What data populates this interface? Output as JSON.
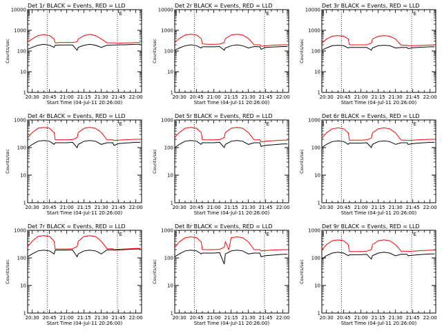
{
  "figure": {
    "colors": {
      "events": "#000000",
      "lld": "#ff0000",
      "background": "#ffffff",
      "axes": "#000000"
    },
    "shared": {
      "xlabel": "Start Time (04-Jul-11 20:26:00)",
      "ylabel": "Counts/sec",
      "x_tick_labels": [
        "20:30",
        "20:45",
        "21:00",
        "21:15",
        "21:30",
        "21:45",
        "22:00"
      ],
      "x_tick_minutes": [
        30,
        45,
        60,
        75,
        90,
        105,
        120
      ],
      "x_range_minutes": [
        26,
        125
      ],
      "dotted_lines_minutes": [
        43,
        104
      ],
      "flag_label": "E",
      "flag_minute": 105
    },
    "x_axis_note": "x values are minutes after 20:00 on 04-Jul-11"
  },
  "chart_data": [
    {
      "type": "line",
      "title": "Det 1r BLACK = Events, RED = LLD",
      "ylim": [
        1,
        10000
      ],
      "yscale": "log",
      "y_tick_labels": [
        "10000",
        "1000",
        "100",
        "10",
        "1"
      ],
      "y_tick_values": [
        10000,
        1000,
        100,
        10,
        1
      ],
      "x": [
        26,
        30,
        35,
        40,
        45,
        49,
        50,
        55,
        60,
        65,
        69,
        70,
        75,
        80,
        85,
        90,
        95,
        100,
        101,
        105,
        110,
        115,
        120,
        124
      ],
      "series": [
        {
          "name": "Events",
          "values": [
            120,
            150,
            190,
            210,
            190,
            150,
            190,
            195,
            195,
            195,
            110,
            150,
            190,
            210,
            190,
            150,
            190,
            195,
            195,
            200,
            200,
            205,
            210,
            210
          ]
        },
        {
          "name": "LLD",
          "values": [
            280,
            380,
            560,
            620,
            560,
            380,
            250,
            260,
            260,
            260,
            280,
            380,
            560,
            640,
            560,
            380,
            250,
            250,
            250,
            240,
            245,
            250,
            255,
            255
          ]
        }
      ]
    },
    {
      "type": "line",
      "title": "Det 2r BLACK = Events, RED = LLD",
      "ylim": [
        1,
        10000
      ],
      "yscale": "log",
      "y_tick_labels": [
        "10000",
        "1000",
        "100",
        "10",
        "1"
      ],
      "y_tick_values": [
        10000,
        1000,
        100,
        10,
        1
      ],
      "x": [
        26,
        30,
        35,
        40,
        45,
        49,
        50,
        55,
        60,
        65,
        69,
        70,
        75,
        80,
        85,
        90,
        95,
        100,
        101,
        105,
        110,
        115,
        120,
        124
      ],
      "series": [
        {
          "name": "Events",
          "values": [
            110,
            140,
            180,
            200,
            180,
            140,
            160,
            160,
            160,
            165,
            110,
            140,
            180,
            200,
            180,
            140,
            165,
            160,
            120,
            150,
            155,
            160,
            165,
            165
          ]
        },
        {
          "name": "LLD",
          "values": [
            260,
            400,
            600,
            650,
            600,
            400,
            220,
            210,
            210,
            215,
            260,
            400,
            600,
            650,
            600,
            400,
            200,
            200,
            170,
            180,
            190,
            195,
            200,
            200
          ]
        }
      ]
    },
    {
      "type": "line",
      "title": "Det 3r BLACK = Events, RED = LLD",
      "ylim": [
        1,
        10000
      ],
      "yscale": "log",
      "y_tick_labels": [
        "10000",
        "1000",
        "100",
        "10",
        "1"
      ],
      "y_tick_values": [
        10000,
        1000,
        100,
        10,
        1
      ],
      "x": [
        26,
        30,
        35,
        40,
        45,
        49,
        50,
        55,
        60,
        65,
        69,
        70,
        75,
        80,
        85,
        90,
        95,
        100,
        101,
        105,
        110,
        115,
        120,
        124
      ],
      "series": [
        {
          "name": "Events",
          "values": [
            110,
            140,
            180,
            190,
            180,
            140,
            150,
            150,
            150,
            150,
            110,
            140,
            180,
            190,
            180,
            140,
            150,
            150,
            130,
            145,
            150,
            155,
            160,
            160
          ]
        },
        {
          "name": "LLD",
          "values": [
            240,
            380,
            520,
            560,
            520,
            380,
            200,
            200,
            200,
            200,
            240,
            380,
            520,
            560,
            520,
            380,
            190,
            190,
            180,
            180,
            185,
            190,
            195,
            195
          ]
        }
      ]
    },
    {
      "type": "line",
      "title": "Det 4r BLACK = Events, RED = LLD",
      "ylim": [
        1,
        1000
      ],
      "yscale": "log",
      "y_tick_labels": [
        "1000",
        "100",
        "10",
        "1"
      ],
      "y_tick_values": [
        1000,
        100,
        10,
        1
      ],
      "x": [
        26,
        30,
        35,
        40,
        45,
        49,
        50,
        55,
        60,
        65,
        69,
        70,
        75,
        80,
        85,
        90,
        95,
        100,
        101,
        105,
        110,
        115,
        120,
        124
      ],
      "series": [
        {
          "name": "Events",
          "values": [
            100,
            130,
            170,
            180,
            170,
            130,
            150,
            150,
            150,
            155,
            100,
            130,
            170,
            180,
            170,
            130,
            150,
            150,
            120,
            140,
            145,
            150,
            155,
            155
          ]
        },
        {
          "name": "LLD",
          "values": [
            230,
            350,
            500,
            540,
            500,
            350,
            190,
            190,
            190,
            195,
            230,
            350,
            500,
            540,
            500,
            350,
            190,
            190,
            180,
            185,
            190,
            195,
            200,
            200
          ]
        }
      ]
    },
    {
      "type": "line",
      "title": "Det 5r BLACK = Events, RED = LLD",
      "ylim": [
        1,
        1000
      ],
      "yscale": "log",
      "y_tick_labels": [
        "1000",
        "100",
        "10",
        "1"
      ],
      "y_tick_values": [
        1000,
        100,
        10,
        1
      ],
      "x": [
        26,
        30,
        35,
        40,
        45,
        49,
        50,
        55,
        60,
        65,
        69,
        70,
        75,
        80,
        85,
        90,
        95,
        100,
        101,
        105,
        110,
        115,
        120,
        124
      ],
      "series": [
        {
          "name": "Events",
          "values": [
            100,
            130,
            170,
            180,
            170,
            130,
            150,
            150,
            150,
            155,
            100,
            130,
            170,
            180,
            170,
            130,
            150,
            150,
            110,
            120,
            125,
            130,
            135,
            135
          ]
        },
        {
          "name": "LLD",
          "values": [
            230,
            350,
            500,
            540,
            500,
            350,
            190,
            190,
            190,
            195,
            230,
            350,
            500,
            540,
            500,
            350,
            190,
            190,
            160,
            170,
            175,
            180,
            185,
            185
          ]
        }
      ]
    },
    {
      "type": "line",
      "title": "Det 6r BLACK = Events, RED = LLD",
      "ylim": [
        1,
        1000
      ],
      "yscale": "log",
      "y_tick_labels": [
        "1000",
        "100",
        "10",
        "1"
      ],
      "y_tick_values": [
        1000,
        100,
        10,
        1
      ],
      "x": [
        26,
        30,
        35,
        40,
        45,
        49,
        50,
        55,
        60,
        65,
        69,
        70,
        75,
        80,
        85,
        90,
        95,
        100,
        101,
        105,
        110,
        115,
        120,
        124
      ],
      "series": [
        {
          "name": "Events",
          "values": [
            100,
            130,
            165,
            175,
            165,
            130,
            145,
            145,
            145,
            150,
            100,
            130,
            165,
            175,
            165,
            130,
            150,
            150,
            130,
            140,
            145,
            150,
            155,
            155
          ]
        },
        {
          "name": "LLD",
          "values": [
            220,
            340,
            480,
            520,
            480,
            340,
            185,
            185,
            185,
            190,
            220,
            340,
            480,
            520,
            480,
            340,
            185,
            185,
            180,
            185,
            190,
            195,
            200,
            200
          ]
        }
      ]
    },
    {
      "type": "line",
      "title": "Det 7r BLACK = Events, RED = LLD",
      "ylim": [
        1,
        1000
      ],
      "yscale": "log",
      "y_tick_labels": [
        "1000",
        "100",
        "10",
        "1"
      ],
      "y_tick_values": [
        1000,
        100,
        10,
        1
      ],
      "x": [
        26,
        30,
        35,
        40,
        45,
        49,
        50,
        55,
        60,
        65,
        69,
        70,
        75,
        80,
        85,
        90,
        95,
        100,
        101,
        105,
        110,
        115,
        120,
        124
      ],
      "series": [
        {
          "name": "Events",
          "values": [
            110,
            140,
            180,
            190,
            180,
            140,
            190,
            190,
            190,
            195,
            110,
            140,
            180,
            190,
            180,
            140,
            195,
            195,
            190,
            195,
            200,
            205,
            210,
            210
          ]
        },
        {
          "name": "LLD",
          "values": [
            260,
            400,
            600,
            640,
            600,
            400,
            210,
            210,
            210,
            215,
            260,
            400,
            600,
            640,
            600,
            400,
            215,
            215,
            200,
            205,
            210,
            215,
            220,
            220
          ]
        }
      ]
    },
    {
      "type": "line",
      "title": "Det 8r BLACK = Events, RED = LLD",
      "ylim": [
        1,
        1000
      ],
      "yscale": "log",
      "y_tick_labels": [
        "1000",
        "100",
        "10",
        "1"
      ],
      "y_tick_values": [
        1000,
        100,
        10,
        1
      ],
      "x": [
        26,
        30,
        35,
        40,
        45,
        49,
        50,
        55,
        60,
        65,
        69,
        70,
        73,
        75,
        80,
        85,
        90,
        95,
        100,
        101,
        105,
        110,
        115,
        120,
        124
      ],
      "series": [
        {
          "name": "Events",
          "values": [
            110,
            140,
            180,
            190,
            180,
            140,
            150,
            150,
            150,
            155,
            60,
            140,
            160,
            180,
            190,
            180,
            140,
            150,
            150,
            110,
            120,
            125,
            130,
            135,
            135
          ]
        },
        {
          "name": "LLD",
          "values": [
            240,
            380,
            540,
            580,
            540,
            380,
            200,
            200,
            200,
            205,
            240,
            380,
            200,
            540,
            580,
            540,
            380,
            200,
            200,
            180,
            185,
            190,
            195,
            200,
            200
          ]
        }
      ]
    },
    {
      "type": "line",
      "title": "Det 9r BLACK = Events, RED = LLD",
      "ylim": [
        1,
        1000
      ],
      "yscale": "log",
      "y_tick_labels": [
        "1000",
        "100",
        "10",
        "1"
      ],
      "y_tick_values": [
        1000,
        100,
        10,
        1
      ],
      "x": [
        26,
        30,
        35,
        40,
        45,
        49,
        50,
        55,
        60,
        65,
        69,
        70,
        75,
        80,
        85,
        90,
        95,
        100,
        101,
        105,
        110,
        115,
        120,
        124
      ],
      "series": [
        {
          "name": "Events",
          "values": [
            90,
            120,
            150,
            160,
            150,
            120,
            130,
            130,
            130,
            135,
            90,
            120,
            150,
            160,
            150,
            120,
            135,
            135,
            120,
            125,
            130,
            135,
            140,
            140
          ]
        },
        {
          "name": "LLD",
          "values": [
            200,
            300,
            420,
            450,
            420,
            300,
            170,
            170,
            170,
            175,
            200,
            300,
            420,
            450,
            420,
            300,
            175,
            175,
            170,
            175,
            180,
            185,
            190,
            190
          ]
        }
      ]
    }
  ]
}
